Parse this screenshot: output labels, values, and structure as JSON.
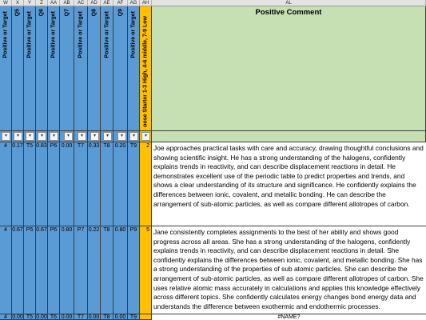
{
  "columns": [
    "W",
    "X",
    "Y",
    "Z",
    "AA",
    "AB",
    "AC",
    "AD",
    "AE",
    "AF",
    "AG",
    "AH",
    "AL"
  ],
  "headers": {
    "positive_or_target": "Positive or Target",
    "questions": [
      "Q5",
      "Q6",
      "Q7",
      "Q8",
      "Q9"
    ],
    "choose_starter": "oose Starter 1-3 High, 4-6 middle, 7-9 Low",
    "positive_comment": "Positive Comment"
  },
  "rows": [
    {
      "cells": [
        "4",
        "0.17",
        "T5",
        "0.83",
        "P6",
        "0.00",
        "T7",
        "0.33",
        "T8",
        "0.20",
        "T9"
      ],
      "starter": "2",
      "comment": "Joe approaches practical tasks with care and accuracy, drawing thoughtful conclusions and showing scientific insight.  He has a strong understanding of the halogens, confidently explains trends in reactivity, and can describe displacement reactions in detail. He demonstrates excellent use of the periodic table to predict properties and trends, and shows a clear understanding of its structure and significance. He confidently explains the differences between ionic, covalent, and metallic bonding. He can describe the arrangement of sub-atomic particles, as well as compare different allotropes of carbon."
    },
    {
      "cells": [
        "4",
        "0.67",
        "P5",
        "0.67",
        "P6",
        "0.80",
        "P7",
        "0.22",
        "T8",
        "0.80",
        "P9"
      ],
      "starter": "5",
      "comment": "Jane consistently completes assignments to the best of her ability and shows good progress across all areas.  She has a strong understanding of the halogens, confidently explains trends in reactivity, and can describe displacement reactions in detail. She confidently explains the differences between ionic, covalent, and metallic bonding. She has a strong understanding of the properties of sub atomic particles. She can describe the arrangement of sub-atomic particles, as well as compare different allotropes of carbon. She uses relative atomic mass accurately in calculations and applies this knowledge effectively across different topics. She confidently calculates energy changes bond energy data and understands the difference between exothermic and endothermic processes."
    },
    {
      "cells": [
        "4",
        "0.00",
        "T5",
        "0.00",
        "T6",
        "0.00",
        "T7",
        "0.00",
        "T8",
        "0.00",
        "T9"
      ],
      "starter": "",
      "comment": "#NAME?"
    }
  ]
}
